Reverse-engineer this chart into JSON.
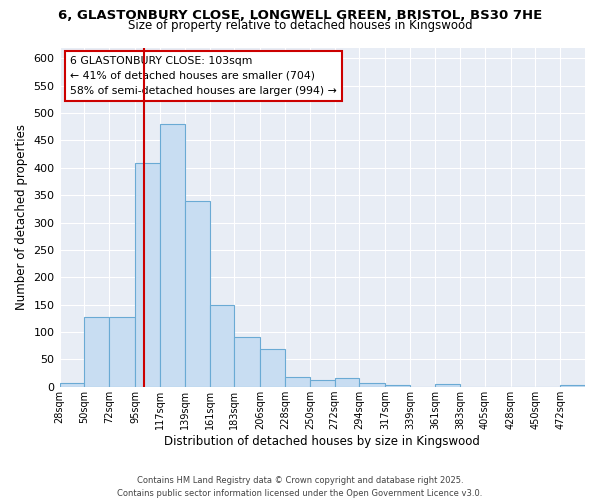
{
  "title_line1": "6, GLASTONBURY CLOSE, LONGWELL GREEN, BRISTOL, BS30 7HE",
  "title_line2": "Size of property relative to detached houses in Kingswood",
  "xlabel": "Distribution of detached houses by size in Kingswood",
  "ylabel": "Number of detached properties",
  "bin_edges": [
    28,
    50,
    72,
    95,
    117,
    139,
    161,
    183,
    206,
    228,
    250,
    272,
    294,
    317,
    339,
    361,
    383,
    405,
    428,
    450,
    472,
    494
  ],
  "bar_heights": [
    7,
    128,
    128,
    408,
    480,
    340,
    150,
    90,
    68,
    18,
    13,
    15,
    6,
    3,
    0,
    4,
    0,
    0,
    0,
    0,
    3
  ],
  "bar_color": "#c8ddf2",
  "bar_edgecolor": "#6aaad4",
  "property_size": 103,
  "vline_color": "#cc0000",
  "annotation_line1": "6 GLASTONBURY CLOSE: 103sqm",
  "annotation_line2": "← 41% of detached houses are smaller (704)",
  "annotation_line3": "58% of semi-detached houses are larger (994) →",
  "annotation_box_edgecolor": "#cc0000",
  "annotation_box_facecolor": "#ffffff",
  "ylim": [
    0,
    620
  ],
  "yticks": [
    0,
    50,
    100,
    150,
    200,
    250,
    300,
    350,
    400,
    450,
    500,
    550,
    600
  ],
  "x_tick_labels": [
    "28sqm",
    "50sqm",
    "72sqm",
    "95sqm",
    "117sqm",
    "139sqm",
    "161sqm",
    "183sqm",
    "206sqm",
    "228sqm",
    "250sqm",
    "272sqm",
    "294sqm",
    "317sqm",
    "339sqm",
    "361sqm",
    "383sqm",
    "405sqm",
    "428sqm",
    "450sqm",
    "472sqm"
  ],
  "fig_background": "#ffffff",
  "axes_background": "#e8edf5",
  "grid_color": "#ffffff",
  "footer_line1": "Contains HM Land Registry data © Crown copyright and database right 2025.",
  "footer_line2": "Contains public sector information licensed under the Open Government Licence v3.0."
}
